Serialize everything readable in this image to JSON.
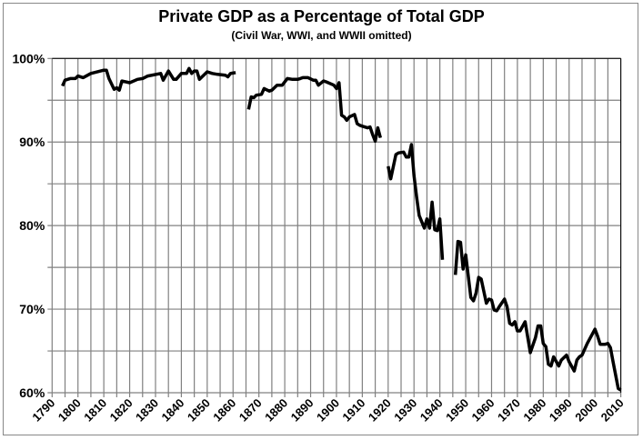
{
  "chart_data": {
    "type": "line",
    "title": "Private GDP as a Percentage of Total GDP",
    "subtitle": "(Civil War, WWI, and WWII omitted)",
    "xlabel": "",
    "ylabel": "",
    "xlim": [
      1790,
      2010
    ],
    "ylim": [
      60,
      100
    ],
    "x_ticks": [
      "1790",
      "1800",
      "1810",
      "1820",
      "1830",
      "1840",
      "1850",
      "1860",
      "1870",
      "1880",
      "1890",
      "1900",
      "1910",
      "1920",
      "1930",
      "1940",
      "1950",
      "1960",
      "1970",
      "1980",
      "1990",
      "2000",
      "2010"
    ],
    "y_ticks": [
      "60%",
      "70%",
      "80%",
      "90%",
      "100%"
    ],
    "grid": {
      "vertical_every_years": 5,
      "horizontal_every_percent": 5
    },
    "legend": "none",
    "line_color": "#000000",
    "grid_color": "#808080",
    "segments": [
      [
        [
          1794,
          96.7
        ],
        [
          1795,
          97.4
        ],
        [
          1797,
          97.6
        ],
        [
          1799,
          97.6
        ],
        [
          1800,
          97.9
        ],
        [
          1802,
          97.7
        ],
        [
          1805,
          98.2
        ],
        [
          1810,
          98.6
        ],
        [
          1811,
          98.6
        ],
        [
          1812,
          97.6
        ],
        [
          1814,
          96.3
        ],
        [
          1815,
          96.5
        ],
        [
          1816,
          96.2
        ],
        [
          1817,
          97.3
        ],
        [
          1820,
          97.1
        ],
        [
          1823,
          97.5
        ],
        [
          1825,
          97.6
        ],
        [
          1827,
          97.9
        ],
        [
          1832,
          98.2
        ],
        [
          1833,
          97.4
        ],
        [
          1835,
          98.5
        ],
        [
          1837,
          97.5
        ],
        [
          1838,
          97.5
        ],
        [
          1840,
          98.2
        ],
        [
          1842,
          98.2
        ],
        [
          1843,
          98.8
        ],
        [
          1844,
          98.2
        ],
        [
          1845,
          98.5
        ],
        [
          1846,
          98.5
        ],
        [
          1847,
          97.5
        ],
        [
          1850,
          98.4
        ],
        [
          1852,
          98.2
        ],
        [
          1854,
          98.1
        ],
        [
          1857,
          98.0
        ],
        [
          1858,
          97.8
        ],
        [
          1859,
          98.2
        ],
        [
          1861,
          98.3
        ]
      ],
      [
        [
          1866,
          93.9
        ],
        [
          1867,
          95.4
        ],
        [
          1868,
          95.3
        ],
        [
          1869,
          95.6
        ],
        [
          1871,
          95.7
        ],
        [
          1872,
          96.4
        ],
        [
          1874,
          96.1
        ],
        [
          1875,
          96.2
        ],
        [
          1877,
          96.8
        ],
        [
          1879,
          96.8
        ],
        [
          1881,
          97.6
        ],
        [
          1883,
          97.5
        ],
        [
          1885,
          97.5
        ],
        [
          1886,
          97.6
        ],
        [
          1887,
          97.7
        ],
        [
          1889,
          97.7
        ],
        [
          1891,
          97.4
        ],
        [
          1892,
          97.4
        ],
        [
          1893,
          96.8
        ],
        [
          1895,
          97.3
        ],
        [
          1896,
          97.2
        ],
        [
          1899,
          96.8
        ],
        [
          1900,
          96.4
        ],
        [
          1901,
          97.1
        ],
        [
          1902,
          93.2
        ],
        [
          1903,
          93.0
        ],
        [
          1904,
          92.6
        ],
        [
          1905,
          93.0
        ],
        [
          1907,
          93.3
        ],
        [
          1908,
          92.2
        ],
        [
          1909,
          92.0
        ],
        [
          1910,
          91.9
        ],
        [
          1912,
          91.7
        ],
        [
          1913,
          91.8
        ],
        [
          1914,
          90.9
        ],
        [
          1915,
          90.1
        ],
        [
          1916,
          91.7
        ],
        [
          1917,
          90.5
        ]
      ],
      [
        [
          1920,
          87.1
        ],
        [
          1921,
          85.6
        ],
        [
          1923,
          88.5
        ],
        [
          1924,
          88.7
        ],
        [
          1926,
          88.8
        ],
        [
          1927,
          88.2
        ],
        [
          1928,
          88.2
        ],
        [
          1929,
          89.7
        ],
        [
          1930,
          86.0
        ],
        [
          1931,
          83.4
        ],
        [
          1932,
          81.2
        ],
        [
          1934,
          79.7
        ],
        [
          1935,
          80.8
        ],
        [
          1936,
          79.7
        ],
        [
          1937,
          82.8
        ],
        [
          1938,
          79.5
        ],
        [
          1939,
          79.4
        ],
        [
          1940,
          80.8
        ],
        [
          1941,
          75.9
        ]
      ],
      [
        [
          1946,
          74.1
        ],
        [
          1947,
          78.1
        ],
        [
          1948,
          78.0
        ],
        [
          1949,
          74.8
        ],
        [
          1950,
          76.5
        ],
        [
          1952,
          71.4
        ],
        [
          1953,
          71.0
        ],
        [
          1954,
          71.9
        ],
        [
          1955,
          73.8
        ],
        [
          1956,
          73.6
        ],
        [
          1958,
          70.7
        ],
        [
          1959,
          71.2
        ],
        [
          1960,
          71.1
        ],
        [
          1961,
          69.9
        ],
        [
          1962,
          69.8
        ],
        [
          1963,
          70.3
        ],
        [
          1965,
          71.2
        ],
        [
          1966,
          70.3
        ],
        [
          1967,
          68.3
        ],
        [
          1968,
          68.1
        ],
        [
          1969,
          68.5
        ],
        [
          1970,
          67.4
        ],
        [
          1971,
          67.4
        ],
        [
          1973,
          68.5
        ],
        [
          1975,
          64.8
        ],
        [
          1977,
          66.6
        ],
        [
          1978,
          68.0
        ],
        [
          1979,
          68.0
        ],
        [
          1980,
          65.9
        ],
        [
          1981,
          65.5
        ],
        [
          1982,
          63.4
        ],
        [
          1983,
          63.2
        ],
        [
          1984,
          64.3
        ],
        [
          1986,
          63.2
        ],
        [
          1987,
          63.9
        ],
        [
          1989,
          64.5
        ],
        [
          1990,
          63.7
        ],
        [
          1992,
          62.6
        ],
        [
          1993,
          63.9
        ],
        [
          1994,
          64.3
        ],
        [
          1995,
          64.5
        ],
        [
          1997,
          65.9
        ],
        [
          2000,
          67.6
        ],
        [
          2001,
          66.8
        ],
        [
          2002,
          65.8
        ],
        [
          2004,
          65.8
        ],
        [
          2005,
          65.9
        ],
        [
          2006,
          65.4
        ],
        [
          2007,
          63.7
        ],
        [
          2009,
          60.5
        ],
        [
          2010,
          60.3
        ]
      ]
    ]
  }
}
